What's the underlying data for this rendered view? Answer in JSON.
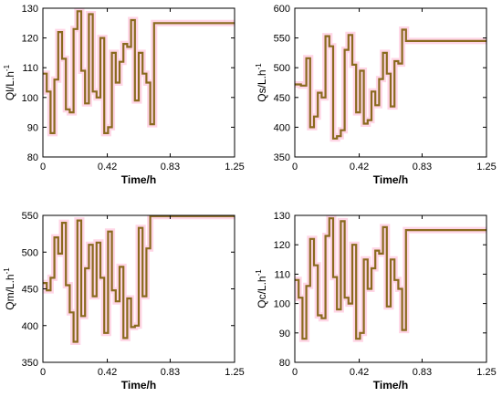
{
  "colors": {
    "line": "#8a6a1e",
    "halo": "#ffd6e6",
    "axis": "#000000",
    "background": "#ffffff"
  },
  "chart_data": [
    {
      "type": "line",
      "step": true,
      "ylabel": "Ql/L.h",
      "ylabel_sup": "-1",
      "xlabel": "Time/h",
      "xlim": [
        0,
        1.25
      ],
      "ylim": [
        80,
        130
      ],
      "xticks": [
        "0",
        "0.42",
        "0.83",
        "1.25"
      ],
      "xtick_values": [
        0,
        0.42,
        0.83,
        1.25
      ],
      "yticks": [
        80,
        90,
        100,
        110,
        120,
        130
      ],
      "x": [
        0,
        0.025,
        0.05,
        0.075,
        0.1,
        0.125,
        0.15,
        0.175,
        0.2,
        0.225,
        0.25,
        0.275,
        0.3,
        0.325,
        0.35,
        0.375,
        0.4,
        0.425,
        0.45,
        0.475,
        0.5,
        0.525,
        0.55,
        0.575,
        0.6,
        0.625,
        0.65,
        0.675,
        0.7,
        0.725,
        0.75,
        0.775,
        0.8,
        0.825,
        0.85,
        0.875,
        0.9,
        0.925,
        0.95,
        0.975,
        1.0,
        1.025,
        1.05,
        1.075,
        1.1,
        1.125,
        1.15,
        1.175,
        1.2,
        1.225,
        1.25
      ],
      "y": [
        108,
        102,
        88,
        106,
        122,
        113,
        96,
        95,
        123,
        129,
        109,
        98,
        128,
        102,
        100,
        120,
        88,
        90,
        115,
        105,
        112,
        118,
        117,
        126,
        99,
        115,
        108,
        105,
        91,
        125,
        125,
        125,
        125,
        125,
        125,
        125,
        125,
        125,
        125,
        125,
        125,
        125,
        125,
        125,
        125,
        125,
        125,
        125,
        125,
        125,
        125
      ]
    },
    {
      "type": "line",
      "step": true,
      "ylabel": "Qs/L.h",
      "ylabel_sup": "-1",
      "xlabel": "Time/h",
      "xlim": [
        0,
        1.25
      ],
      "ylim": [
        350,
        600
      ],
      "xticks": [
        "0",
        "0.42",
        "0.83",
        "1.25"
      ],
      "xtick_values": [
        0,
        0.42,
        0.83,
        1.25
      ],
      "yticks": [
        350,
        400,
        450,
        500,
        550,
        600
      ],
      "x": [
        0,
        0.04,
        0.075,
        0.1,
        0.125,
        0.15,
        0.175,
        0.2,
        0.225,
        0.25,
        0.275,
        0.3,
        0.325,
        0.35,
        0.375,
        0.4,
        0.425,
        0.45,
        0.475,
        0.5,
        0.525,
        0.55,
        0.575,
        0.6,
        0.625,
        0.65,
        0.675,
        0.7,
        0.725,
        0.75,
        0.775,
        0.8,
        0.825,
        0.85,
        0.875,
        0.9,
        0.925,
        0.95,
        0.975,
        1.0,
        1.025,
        1.05,
        1.075,
        1.1,
        1.125,
        1.15,
        1.175,
        1.2,
        1.225,
        1.25
      ],
      "y": [
        472,
        470,
        516,
        400,
        418,
        458,
        450,
        553,
        536,
        381,
        385,
        395,
        530,
        555,
        505,
        425,
        495,
        406,
        412,
        460,
        437,
        481,
        525,
        490,
        435,
        511,
        507,
        564,
        545,
        545,
        545,
        545,
        545,
        545,
        545,
        545,
        545,
        545,
        545,
        545,
        545,
        545,
        545,
        545,
        545,
        545,
        545,
        545,
        545,
        545
      ]
    },
    {
      "type": "line",
      "step": true,
      "ylabel": "Qm/L.h",
      "ylabel_sup": "-1",
      "xlabel": "Time/h",
      "xlim": [
        0,
        1.25
      ],
      "ylim": [
        350,
        550
      ],
      "xticks": [
        "0",
        "0.42",
        "0.83",
        "1.25"
      ],
      "xtick_values": [
        0,
        0.42,
        0.83,
        1.25
      ],
      "yticks": [
        350,
        400,
        450,
        500,
        550
      ],
      "x": [
        0,
        0.025,
        0.05,
        0.075,
        0.1,
        0.125,
        0.15,
        0.175,
        0.2,
        0.225,
        0.25,
        0.275,
        0.3,
        0.325,
        0.35,
        0.375,
        0.4,
        0.425,
        0.45,
        0.475,
        0.5,
        0.525,
        0.55,
        0.575,
        0.6,
        0.625,
        0.65,
        0.675,
        0.7,
        0.725,
        0.75,
        0.775,
        0.8,
        0.825,
        0.85,
        0.875,
        0.9,
        0.925,
        0.95,
        0.975,
        1.0,
        1.025,
        1.05,
        1.075,
        1.1,
        1.125,
        1.15,
        1.175,
        1.2,
        1.225,
        1.25
      ],
      "y": [
        458,
        448,
        465,
        520,
        498,
        540,
        455,
        418,
        378,
        543,
        413,
        478,
        510,
        440,
        513,
        465,
        390,
        528,
        448,
        433,
        480,
        383,
        437,
        398,
        400,
        533,
        440,
        505,
        549,
        549,
        549,
        549,
        549,
        549,
        549,
        549,
        549,
        549,
        549,
        549,
        549,
        549,
        549,
        549,
        549,
        549,
        549,
        549,
        549,
        549,
        549
      ]
    },
    {
      "type": "line",
      "step": true,
      "ylabel": "Qc/L.h",
      "ylabel_sup": "-1",
      "xlabel": "Time/h",
      "xlim": [
        0,
        1.25
      ],
      "ylim": [
        80,
        130
      ],
      "xticks": [
        "0",
        "0.42",
        "0.83",
        "1.25"
      ],
      "xtick_values": [
        0,
        0.42,
        0.83,
        1.25
      ],
      "yticks": [
        80,
        90,
        100,
        110,
        120,
        130
      ],
      "x": [
        0,
        0.025,
        0.05,
        0.075,
        0.1,
        0.125,
        0.15,
        0.175,
        0.2,
        0.225,
        0.25,
        0.275,
        0.3,
        0.325,
        0.35,
        0.375,
        0.4,
        0.425,
        0.45,
        0.475,
        0.5,
        0.525,
        0.55,
        0.575,
        0.6,
        0.625,
        0.65,
        0.675,
        0.7,
        0.725,
        0.75,
        0.775,
        0.8,
        0.825,
        0.85,
        0.875,
        0.9,
        0.925,
        0.95,
        0.975,
        1.0,
        1.025,
        1.05,
        1.075,
        1.1,
        1.125,
        1.15,
        1.175,
        1.2,
        1.225,
        1.25
      ],
      "y": [
        108,
        102,
        88,
        106,
        122,
        113,
        96,
        95,
        123,
        129,
        109,
        98,
        128,
        102,
        100,
        120,
        88,
        90,
        115,
        105,
        112,
        118,
        117,
        126,
        99,
        115,
        108,
        105,
        91,
        125,
        125,
        125,
        125,
        125,
        125,
        125,
        125,
        125,
        125,
        125,
        125,
        125,
        125,
        125,
        125,
        125,
        125,
        125,
        125,
        125,
        125
      ]
    }
  ]
}
